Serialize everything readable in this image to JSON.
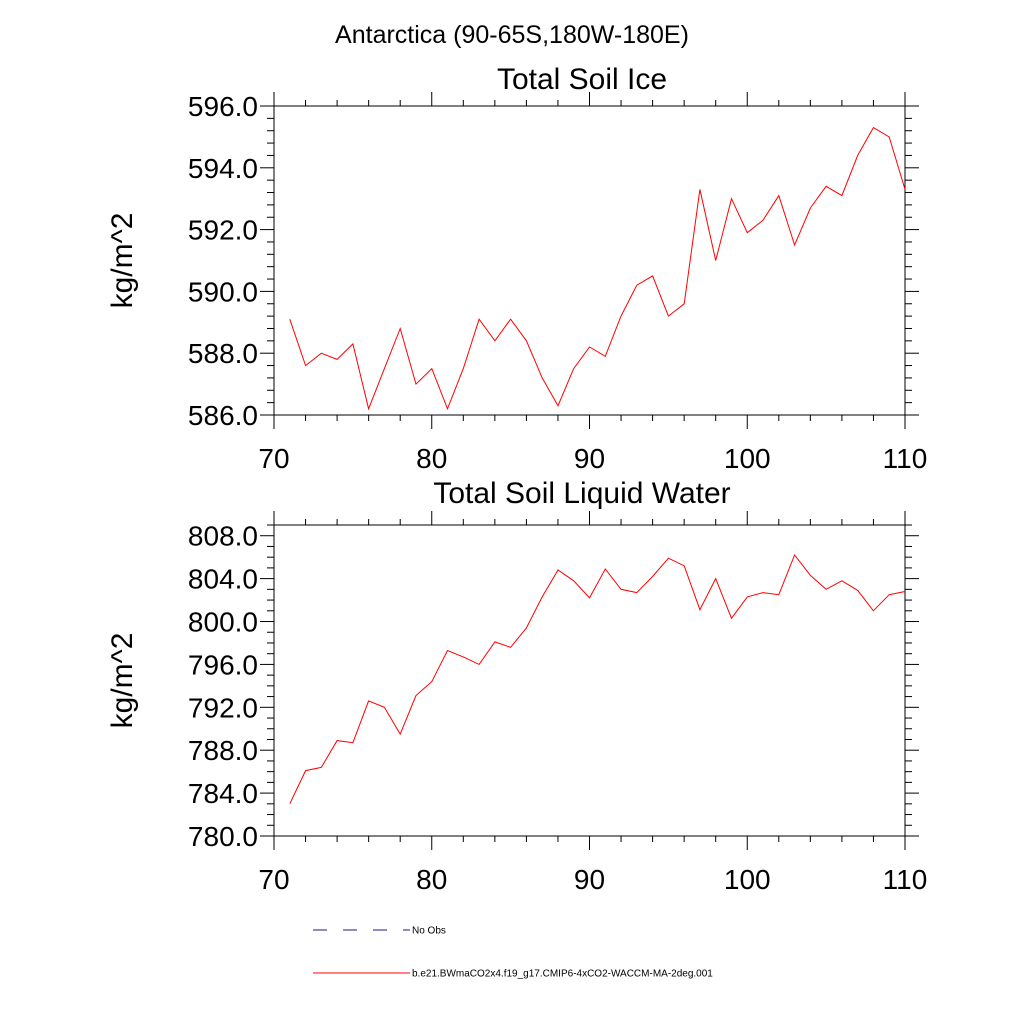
{
  "figure_title": "Antarctica (90-65S,180W-180E)",
  "colors": {
    "series": "#ff0000",
    "obs": "#1a1a80",
    "axis": "#000000"
  },
  "legend": [
    {
      "label": "No Obs",
      "style": "dashed",
      "color": "#1a1a80"
    },
    {
      "label": "b.e21.BWmaCO2x4.f19_g17.CMIP6-4xCO2-WACCM-MA-2deg.001",
      "style": "solid",
      "color": "#ff0000"
    }
  ],
  "chart_data": [
    {
      "type": "line",
      "title": "Total Soil Ice",
      "xlabel": "",
      "ylabel": "kg/m^2",
      "xlim": [
        70,
        110
      ],
      "ylim": [
        586.0,
        596.0
      ],
      "xticks": [
        70,
        80,
        90,
        100,
        110
      ],
      "yticks": [
        "586.0",
        "588.0",
        "590.0",
        "592.0",
        "594.0",
        "596.0"
      ],
      "yminor_step": 0.4,
      "x": [
        71,
        72,
        73,
        74,
        75,
        76,
        77,
        78,
        79,
        80,
        81,
        82,
        83,
        84,
        85,
        86,
        87,
        88,
        89,
        90,
        91,
        92,
        93,
        94,
        95,
        96,
        97,
        98,
        99,
        100,
        101,
        102,
        103,
        104,
        105,
        106,
        107,
        108,
        109,
        110
      ],
      "series": [
        {
          "name": "b.e21.BWmaCO2x4.f19_g17.CMIP6-4xCO2-WACCM-MA-2deg.001",
          "values": [
            589.1,
            587.6,
            588.0,
            587.8,
            588.3,
            586.2,
            587.5,
            588.8,
            587.0,
            587.5,
            586.2,
            587.5,
            589.1,
            588.4,
            589.1,
            588.4,
            587.2,
            586.3,
            587.5,
            588.2,
            587.9,
            589.2,
            590.2,
            590.5,
            589.2,
            589.6,
            593.3,
            591.0,
            593.0,
            591.9,
            592.3,
            593.1,
            591.5,
            592.7,
            593.4,
            593.1,
            594.4,
            595.3,
            595.0,
            593.3
          ]
        }
      ]
    },
    {
      "type": "line",
      "title": "Total Soil Liquid Water",
      "xlabel": "",
      "ylabel": "kg/m^2",
      "xlim": [
        70,
        110
      ],
      "ylim": [
        780.0,
        809.0
      ],
      "xticks": [
        70,
        80,
        90,
        100,
        110
      ],
      "yticks": [
        "780.0",
        "784.0",
        "788.0",
        "792.0",
        "796.0",
        "800.0",
        "804.0",
        "808.0"
      ],
      "yminor_step": 1.0,
      "x": [
        71,
        72,
        73,
        74,
        75,
        76,
        77,
        78,
        79,
        80,
        81,
        82,
        83,
        84,
        85,
        86,
        87,
        88,
        89,
        90,
        91,
        92,
        93,
        94,
        95,
        96,
        97,
        98,
        99,
        100,
        101,
        102,
        103,
        104,
        105,
        106,
        107,
        108,
        109,
        110
      ],
      "series": [
        {
          "name": "b.e21.BWmaCO2x4.f19_g17.CMIP6-4xCO2-WACCM-MA-2deg.001",
          "values": [
            783.0,
            786.1,
            786.4,
            788.9,
            788.7,
            792.6,
            792.0,
            789.5,
            793.1,
            794.4,
            797.3,
            796.7,
            796.0,
            798.1,
            797.6,
            799.4,
            802.3,
            804.8,
            803.8,
            802.2,
            804.9,
            803.0,
            802.7,
            804.2,
            805.9,
            805.2,
            801.1,
            804.0,
            800.3,
            802.3,
            802.7,
            802.5,
            806.2,
            804.3,
            803.0,
            803.8,
            802.9,
            801.0,
            802.5,
            802.8
          ]
        }
      ]
    }
  ]
}
